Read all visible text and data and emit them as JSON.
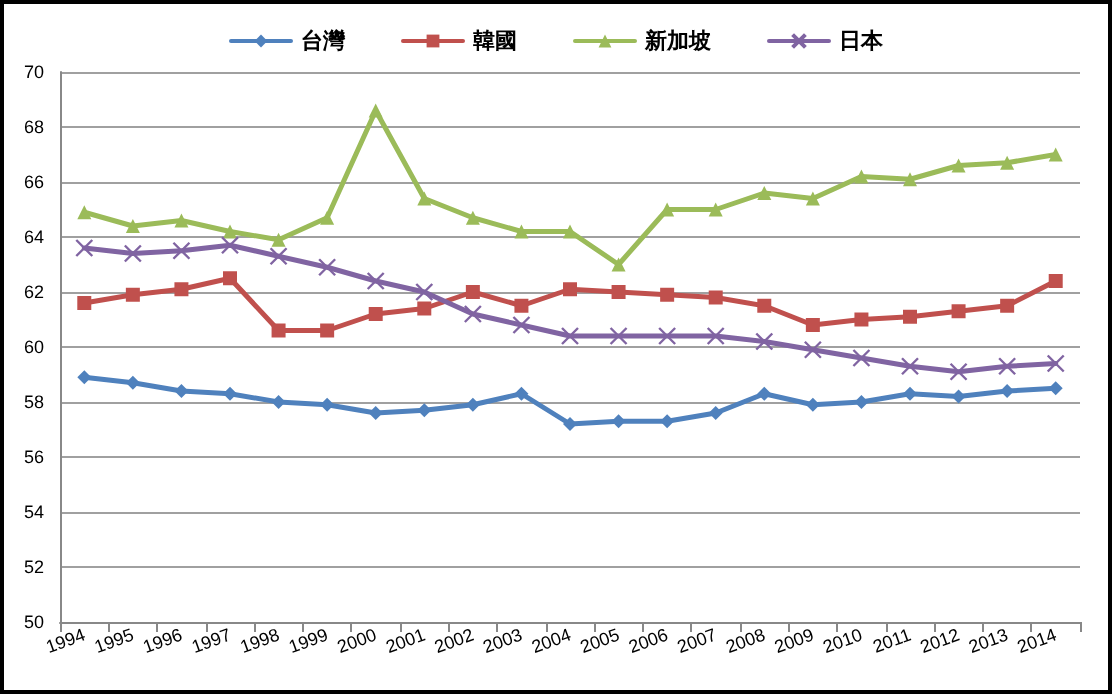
{
  "chart_data": {
    "type": "line",
    "categories": [
      "1994",
      "1995",
      "1996",
      "1997",
      "1998",
      "1999",
      "2000",
      "2001",
      "2002",
      "2003",
      "2004",
      "2005",
      "2006",
      "2007",
      "2008",
      "2009",
      "2010",
      "2011",
      "2012",
      "2013",
      "2014"
    ],
    "series": [
      {
        "name": "台灣",
        "color": "#4f81bd",
        "marker": "diamond",
        "values": [
          58.9,
          58.7,
          58.4,
          58.3,
          58.0,
          57.9,
          57.6,
          57.7,
          57.9,
          58.3,
          57.2,
          57.3,
          57.3,
          57.6,
          58.3,
          57.9,
          58.0,
          58.3,
          58.2,
          58.4,
          58.5
        ]
      },
      {
        "name": "韓國",
        "color": "#c0504d",
        "marker": "square",
        "values": [
          61.6,
          61.9,
          62.1,
          62.5,
          60.6,
          60.6,
          61.2,
          61.4,
          62.0,
          61.5,
          62.1,
          62.0,
          61.9,
          61.8,
          61.5,
          60.8,
          61.0,
          61.1,
          61.3,
          61.5,
          62.4
        ]
      },
      {
        "name": "新加坡",
        "color": "#9bbb59",
        "marker": "triangle",
        "values": [
          64.9,
          64.4,
          64.6,
          64.2,
          63.9,
          64.7,
          68.6,
          65.4,
          64.7,
          64.2,
          64.2,
          63.0,
          65.0,
          65.0,
          65.6,
          65.4,
          66.2,
          66.1,
          66.6,
          66.7,
          67.0
        ]
      },
      {
        "name": "日本",
        "color": "#8064a2",
        "marker": "cross",
        "values": [
          63.6,
          63.4,
          63.5,
          63.7,
          63.3,
          62.9,
          62.4,
          62.0,
          61.2,
          60.8,
          60.4,
          60.4,
          60.4,
          60.4,
          60.2,
          59.9,
          59.6,
          59.3,
          59.1,
          59.3,
          59.4
        ]
      }
    ],
    "ylim": [
      50,
      70
    ],
    "yticks": [
      50,
      52,
      54,
      56,
      58,
      60,
      62,
      64,
      66,
      68,
      70
    ],
    "grid": "y",
    "legend": "top",
    "line_style": "solid"
  }
}
